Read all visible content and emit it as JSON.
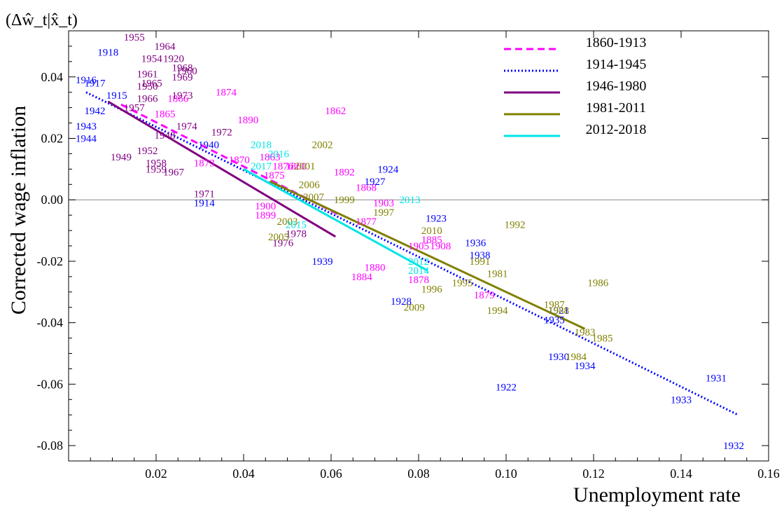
{
  "chart_data": {
    "type": "scatter",
    "title": "(Δŵ_t|x̂_t)",
    "xlabel": "Unemployment rate",
    "ylabel": "Corrected wage inflation",
    "xlim": [
      0.0,
      0.16
    ],
    "ylim": [
      -0.085,
      0.055
    ],
    "xticks": [
      "0.02",
      "0.04",
      "0.06",
      "0.08",
      "0.10",
      "0.12",
      "0.14",
      "0.16"
    ],
    "yticks": [
      "0.04",
      "0.02",
      "0.00",
      "-0.02",
      "-0.04",
      "-0.06",
      "-0.08"
    ],
    "zero_line": true,
    "grid": false,
    "legend_position": "top-right",
    "series": [
      {
        "name": "1860-1913",
        "color": "#ff00ff",
        "line_style": "dashed",
        "fit": [
          [
            0.012,
            0.031
          ],
          [
            0.062,
            -0.005
          ]
        ],
        "points": [
          {
            "label": "1874",
            "x": 0.036,
            "y": 0.035
          },
          {
            "label": "1862",
            "x": 0.061,
            "y": 0.029
          },
          {
            "label": "1866",
            "x": 0.025,
            "y": 0.033
          },
          {
            "label": "1890",
            "x": 0.041,
            "y": 0.026
          },
          {
            "label": "1870",
            "x": 0.039,
            "y": 0.013
          },
          {
            "label": "1863",
            "x": 0.046,
            "y": 0.014
          },
          {
            "label": "1873",
            "x": 0.031,
            "y": 0.012
          },
          {
            "label": "1876",
            "x": 0.049,
            "y": 0.011
          },
          {
            "label": "1860",
            "x": 0.052,
            "y": 0.011
          },
          {
            "label": "1875",
            "x": 0.047,
            "y": 0.008
          },
          {
            "label": "1892",
            "x": 0.063,
            "y": 0.009
          },
          {
            "label": "1868",
            "x": 0.068,
            "y": 0.004
          },
          {
            "label": "1899",
            "x": 0.045,
            "y": -0.005
          },
          {
            "label": "1900",
            "x": 0.045,
            "y": -0.002
          },
          {
            "label": "1903",
            "x": 0.072,
            "y": -0.001
          },
          {
            "label": "1877",
            "x": 0.068,
            "y": -0.007
          },
          {
            "label": "1880",
            "x": 0.07,
            "y": -0.022
          },
          {
            "label": "1884",
            "x": 0.067,
            "y": -0.025
          },
          {
            "label": "1885",
            "x": 0.083,
            "y": -0.013
          },
          {
            "label": "1908",
            "x": 0.085,
            "y": -0.015
          },
          {
            "label": "1905",
            "x": 0.08,
            "y": -0.015
          },
          {
            "label": "1878",
            "x": 0.08,
            "y": -0.026
          },
          {
            "label": "1879",
            "x": 0.095,
            "y": -0.031
          },
          {
            "label": "1865",
            "x": 0.022,
            "y": 0.028
          }
        ]
      },
      {
        "name": "1914-1945",
        "color": "#0000ff",
        "line_style": "dotted",
        "fit": [
          [
            0.004,
            0.035
          ],
          [
            0.153,
            -0.07
          ]
        ],
        "points": [
          {
            "label": "1918",
            "x": 0.009,
            "y": 0.048
          },
          {
            "label": "1916",
            "x": 0.004,
            "y": 0.039
          },
          {
            "label": "1917",
            "x": 0.006,
            "y": 0.038
          },
          {
            "label": "1915",
            "x": 0.011,
            "y": 0.034
          },
          {
            "label": "1942",
            "x": 0.006,
            "y": 0.029
          },
          {
            "label": "1943",
            "x": 0.004,
            "y": 0.024
          },
          {
            "label": "1944",
            "x": 0.004,
            "y": 0.02
          },
          {
            "label": "1940",
            "x": 0.032,
            "y": 0.018
          },
          {
            "label": "1914",
            "x": 0.031,
            "y": -0.001
          },
          {
            "label": "1924",
            "x": 0.073,
            "y": 0.01
          },
          {
            "label": "1927",
            "x": 0.07,
            "y": 0.006
          },
          {
            "label": "1923",
            "x": 0.084,
            "y": -0.006
          },
          {
            "label": "1939",
            "x": 0.058,
            "y": -0.02
          },
          {
            "label": "1936",
            "x": 0.093,
            "y": -0.014
          },
          {
            "label": "1938",
            "x": 0.094,
            "y": -0.018
          },
          {
            "label": "1928",
            "x": 0.076,
            "y": -0.033
          },
          {
            "label": "1921",
            "x": 0.112,
            "y": -0.036
          },
          {
            "label": "1935",
            "x": 0.111,
            "y": -0.039
          },
          {
            "label": "1922",
            "x": 0.1,
            "y": -0.061
          },
          {
            "label": "1930",
            "x": 0.112,
            "y": -0.051
          },
          {
            "label": "1934",
            "x": 0.118,
            "y": -0.054
          },
          {
            "label": "1931",
            "x": 0.148,
            "y": -0.058
          },
          {
            "label": "1933",
            "x": 0.14,
            "y": -0.065
          },
          {
            "label": "1932",
            "x": 0.152,
            "y": -0.08
          }
        ]
      },
      {
        "name": "1946-1980",
        "color": "#800080",
        "line_style": "solid",
        "fit": [
          [
            0.009,
            0.032
          ],
          [
            0.061,
            -0.012
          ]
        ],
        "points": [
          {
            "label": "1955",
            "x": 0.015,
            "y": 0.053
          },
          {
            "label": "1964",
            "x": 0.022,
            "y": 0.05
          },
          {
            "label": "1954",
            "x": 0.019,
            "y": 0.046
          },
          {
            "label": "1920",
            "x": 0.024,
            "y": 0.046
          },
          {
            "label": "1968",
            "x": 0.026,
            "y": 0.043
          },
          {
            "label": "1960",
            "x": 0.027,
            "y": 0.042
          },
          {
            "label": "1961",
            "x": 0.018,
            "y": 0.041
          },
          {
            "label": "1969",
            "x": 0.026,
            "y": 0.04
          },
          {
            "label": "1965",
            "x": 0.019,
            "y": 0.038
          },
          {
            "label": "1950",
            "x": 0.018,
            "y": 0.037
          },
          {
            "label": "1966",
            "x": 0.018,
            "y": 0.033
          },
          {
            "label": "1973",
            "x": 0.026,
            "y": 0.034
          },
          {
            "label": "1957",
            "x": 0.015,
            "y": 0.03
          },
          {
            "label": "1974",
            "x": 0.027,
            "y": 0.024
          },
          {
            "label": "1972",
            "x": 0.035,
            "y": 0.022
          },
          {
            "label": "1948",
            "x": 0.022,
            "y": 0.021
          },
          {
            "label": "1952",
            "x": 0.018,
            "y": 0.016
          },
          {
            "label": "1949",
            "x": 0.012,
            "y": 0.014
          },
          {
            "label": "1958",
            "x": 0.02,
            "y": 0.012
          },
          {
            "label": "1959",
            "x": 0.02,
            "y": 0.01
          },
          {
            "label": "1967",
            "x": 0.024,
            "y": 0.009
          },
          {
            "label": "1971",
            "x": 0.031,
            "y": 0.002
          },
          {
            "label": "1976",
            "x": 0.049,
            "y": -0.014
          },
          {
            "label": "1978",
            "x": 0.052,
            "y": -0.011
          }
        ]
      },
      {
        "name": "1981-2011",
        "color": "#808000",
        "line_style": "solid",
        "fit": [
          [
            0.046,
            0.006
          ],
          [
            0.118,
            -0.042
          ]
        ],
        "points": [
          {
            "label": "2002",
            "x": 0.058,
            "y": 0.018
          },
          {
            "label": "2001",
            "x": 0.054,
            "y": 0.011
          },
          {
            "label": "2006",
            "x": 0.055,
            "y": 0.005
          },
          {
            "label": "2007",
            "x": 0.056,
            "y": 0.001
          },
          {
            "label": "1999",
            "x": 0.063,
            "y": 0.0
          },
          {
            "label": "1997",
            "x": 0.072,
            "y": -0.004
          },
          {
            "label": "2003",
            "x": 0.05,
            "y": -0.007
          },
          {
            "label": "2005",
            "x": 0.048,
            "y": -0.012
          },
          {
            "label": "2010",
            "x": 0.083,
            "y": -0.01
          },
          {
            "label": "1992",
            "x": 0.102,
            "y": -0.008
          },
          {
            "label": "1981",
            "x": 0.098,
            "y": -0.024
          },
          {
            "label": "1991",
            "x": 0.094,
            "y": -0.02
          },
          {
            "label": "1995",
            "x": 0.09,
            "y": -0.027
          },
          {
            "label": "1996",
            "x": 0.083,
            "y": -0.029
          },
          {
            "label": "2009",
            "x": 0.079,
            "y": -0.035
          },
          {
            "label": "1994",
            "x": 0.098,
            "y": -0.036
          },
          {
            "label": "1986",
            "x": 0.121,
            "y": -0.027
          },
          {
            "label": "1987",
            "x": 0.111,
            "y": -0.034
          },
          {
            "label": "1988",
            "x": 0.112,
            "y": -0.036
          },
          {
            "label": "1983",
            "x": 0.118,
            "y": -0.043
          },
          {
            "label": "1985",
            "x": 0.122,
            "y": -0.045
          },
          {
            "label": "1984",
            "x": 0.116,
            "y": -0.051
          }
        ]
      },
      {
        "name": "2012-2018",
        "color": "#00e5e5",
        "line_style": "solid",
        "fit": [
          [
            0.04,
            0.01
          ],
          [
            0.082,
            -0.023
          ]
        ],
        "points": [
          {
            "label": "2018",
            "x": 0.044,
            "y": 0.018
          },
          {
            "label": "2016",
            "x": 0.048,
            "y": 0.015
          },
          {
            "label": "2017",
            "x": 0.044,
            "y": 0.011
          },
          {
            "label": "2013",
            "x": 0.078,
            "y": 0.0
          },
          {
            "label": "2015",
            "x": 0.052,
            "y": -0.008
          },
          {
            "label": "2014",
            "x": 0.08,
            "y": -0.023
          },
          {
            "label": "2012",
            "x": 0.08,
            "y": -0.02
          }
        ]
      }
    ]
  }
}
